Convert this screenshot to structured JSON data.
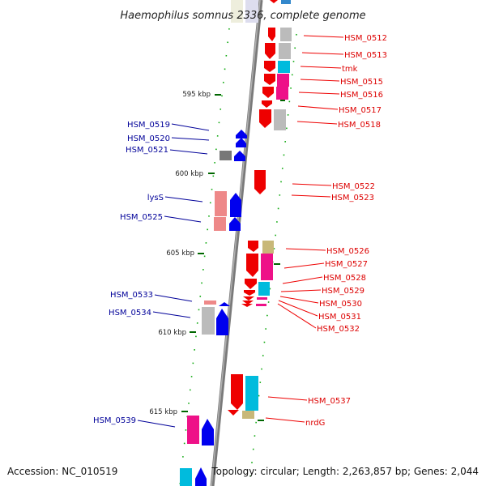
{
  "title": "Haemophilus somnus 2336, complete genome",
  "footer": {
    "accession": "Accession: NC_010519",
    "topology": "Topology: circular; Length: 2,263,857 bp; Genes: 2,044"
  },
  "colors": {
    "backbone": "#888888",
    "tick": "#007700",
    "red_label": "#dd0000",
    "blue_label": "#000099",
    "forward_gene": "#0000ee",
    "reverse_gene": "#ee0000",
    "cog_pink": "#ee1188",
    "cog_cyan": "#00bbdd",
    "cog_gray": "#bbbbbb",
    "cog_salmon": "#ee8888",
    "cog_khaki": "#c8b878"
  },
  "kbp_markers": [
    "595 kbp",
    "600 kbp",
    "605 kbp",
    "610 kbp",
    "615 kbp"
  ],
  "right_labels": [
    "HSM_0512",
    "HSM_0513",
    "tmk",
    "HSM_0515",
    "HSM_0516",
    "HSM_0517",
    "HSM_0518",
    "HSM_0522",
    "HSM_0523",
    "HSM_0526",
    "HSM_0527",
    "HSM_0528",
    "HSM_0529",
    "HSM_0530",
    "HSM_0531",
    "HSM_0532",
    "HSM_0537",
    "nrdG"
  ],
  "left_labels": [
    "HSM_0519",
    "HSM_0520",
    "HSM_0521",
    "lysS",
    "HSM_0525",
    "HSM_0533",
    "HSM_0534",
    "HSM_0539"
  ]
}
